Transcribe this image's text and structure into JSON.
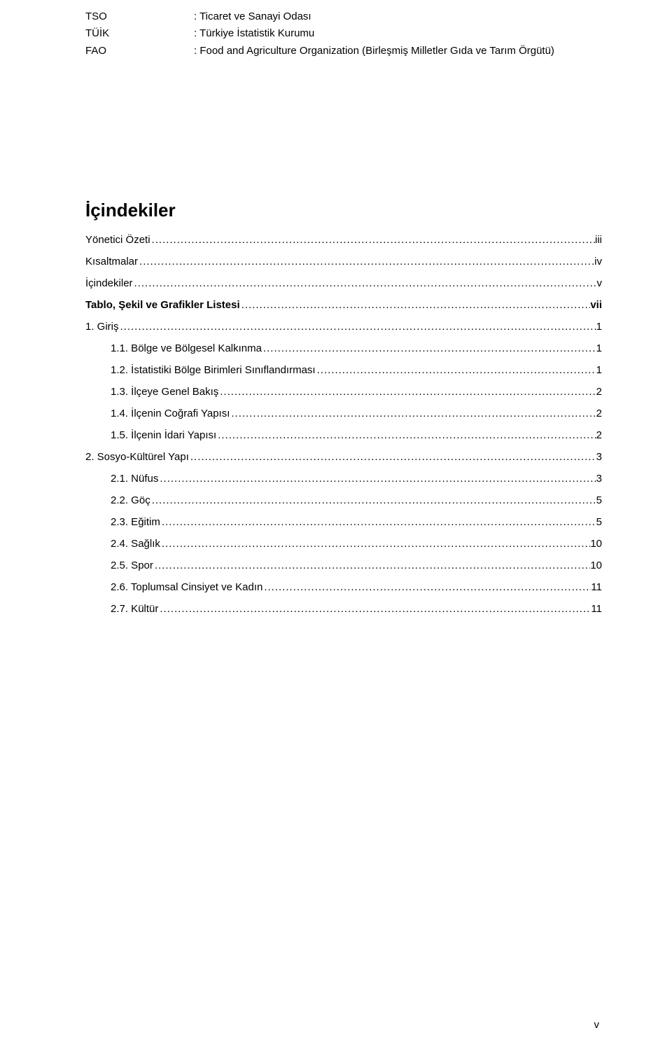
{
  "abbreviations": [
    {
      "key": "TSO",
      "val": ": Ticaret ve Sanayi Odası"
    },
    {
      "key": "TÜİK",
      "val": ": Türkiye İstatistik Kurumu"
    },
    {
      "key": "FAO",
      "val": ": Food and Agriculture Organization (Birleşmiş Milletler Gıda ve Tarım Örgütü)"
    }
  ],
  "toc": {
    "title": "İçindekiler",
    "entries": [
      {
        "label": "Yönetici Özeti",
        "page": "iii",
        "bold": false,
        "indent": 0
      },
      {
        "label": "Kısaltmalar",
        "page": "iv",
        "bold": false,
        "indent": 0
      },
      {
        "label": "İçindekiler",
        "page": "v",
        "bold": false,
        "indent": 0
      },
      {
        "label": "Tablo, Şekil ve Grafikler Listesi",
        "page": "vii",
        "bold": true,
        "indent": 0
      },
      {
        "label": "1. Giriş",
        "page": "1",
        "bold": false,
        "indent": 0
      },
      {
        "label": "1.1. Bölge ve Bölgesel Kalkınma",
        "page": "1",
        "bold": false,
        "indent": 1
      },
      {
        "label": "1.2. İstatistiki Bölge Birimleri Sınıflandırması",
        "page": "1",
        "bold": false,
        "indent": 1
      },
      {
        "label": "1.3. İlçeye Genel Bakış",
        "page": "2",
        "bold": false,
        "indent": 1
      },
      {
        "label": "1.4. İlçenin Coğrafi Yapısı",
        "page": "2",
        "bold": false,
        "indent": 1
      },
      {
        "label": "1.5. İlçenin İdari Yapısı",
        "page": "2",
        "bold": false,
        "indent": 1
      },
      {
        "label": "2. Sosyo-Kültürel Yapı",
        "page": "3",
        "bold": false,
        "indent": 0
      },
      {
        "label": "2.1. Nüfus",
        "page": "3",
        "bold": false,
        "indent": 1
      },
      {
        "label": "2.2. Göç",
        "page": "5",
        "bold": false,
        "indent": 1
      },
      {
        "label": "2.3. Eğitim",
        "page": "5",
        "bold": false,
        "indent": 1
      },
      {
        "label": "2.4. Sağlık",
        "page": "10",
        "bold": false,
        "indent": 1
      },
      {
        "label": "2.5. Spor",
        "page": "10",
        "bold": false,
        "indent": 1
      },
      {
        "label": "2.6. Toplumsal Cinsiyet ve Kadın",
        "page": "11",
        "bold": false,
        "indent": 1
      },
      {
        "label": "2.7. Kültür",
        "page": "11",
        "bold": false,
        "indent": 1
      }
    ]
  },
  "leader_dots": ".....................................................................................................................................................................................",
  "footer_page": "v"
}
